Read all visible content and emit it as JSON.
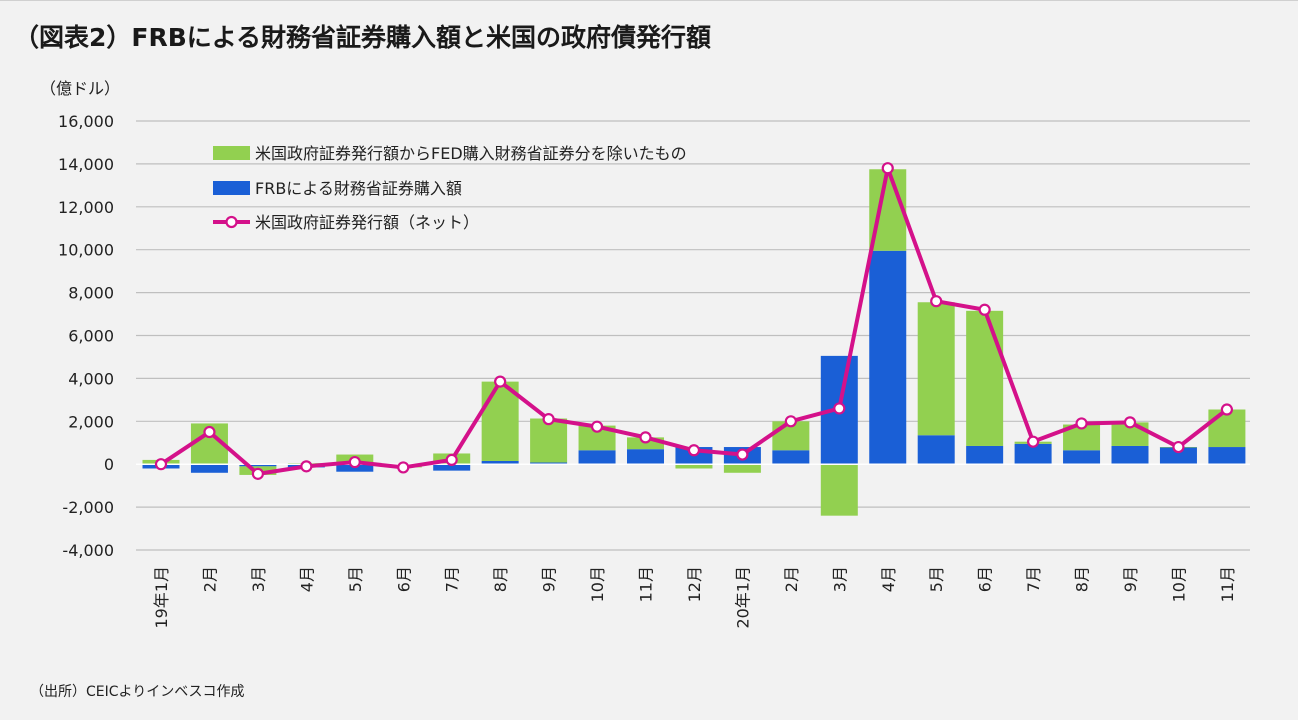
{
  "title": "（図表2）FRBによる財務省証券購入額と米国の政府債発行額",
  "source": "（出所）CEICよりインベスコ作成",
  "colors": {
    "green": "#92d050",
    "blue": "#1a5fd6",
    "line": "#d4118a",
    "negative_tick": "#e00000",
    "grid": "#bfbfbf"
  },
  "chart_data": {
    "type": "bar+line",
    "unit_label": "（億ドル）",
    "categories": [
      "19年1月",
      "2月",
      "3月",
      "4月",
      "5月",
      "6月",
      "7月",
      "8月",
      "9月",
      "10月",
      "11月",
      "12月",
      "20年1月",
      "2月",
      "3月",
      "4月",
      "5月",
      "6月",
      "7月",
      "8月",
      "9月",
      "10月",
      "11月"
    ],
    "y_ticks": [
      "16,000",
      "14,000",
      "12,000",
      "10,000",
      "8,000",
      "6,000",
      "4,000",
      "2,000",
      "0",
      "-2,000",
      "-4,000"
    ],
    "ylim": [
      -4000,
      16000
    ],
    "stacked": true,
    "grid": true,
    "legend_position": "top-left",
    "series": [
      {
        "name": "米国政府証券発行額からFED購入財務省証券分を除いたもの",
        "kind": "bar",
        "values": [
          200,
          1900,
          -400,
          50,
          450,
          -100,
          500,
          3700,
          2050,
          1150,
          550,
          -200,
          -400,
          1350,
          -2400,
          3800,
          6200,
          6300,
          100,
          1200,
          1100,
          0,
          1750
        ]
      },
      {
        "name": "FRBによる財務省証券購入額",
        "kind": "bar",
        "values": [
          -200,
          -400,
          -100,
          -150,
          -350,
          -50,
          -300,
          150,
          80,
          650,
          700,
          800,
          800,
          650,
          5050,
          9950,
          1350,
          850,
          950,
          650,
          850,
          800,
          800
        ]
      },
      {
        "name": "米国政府証券発行額（ネット）",
        "kind": "line",
        "values": [
          0,
          1500,
          -450,
          -100,
          100,
          -150,
          200,
          3850,
          2100,
          1750,
          1250,
          650,
          450,
          2000,
          2600,
          13800,
          7600,
          7200,
          1050,
          1900,
          1950,
          800,
          2550
        ]
      }
    ]
  }
}
